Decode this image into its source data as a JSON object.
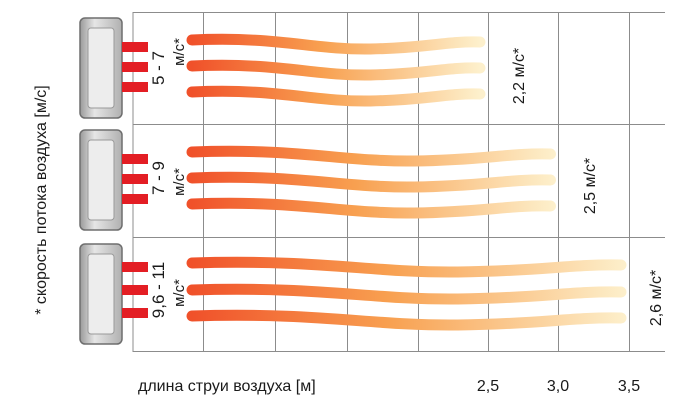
{
  "y_axis_label": "* скорость потока воздуха [м/с]",
  "x_axis_label": "длина струи воздуха [м]",
  "x_ticks": [
    "2,5",
    "3,0",
    "3,5"
  ],
  "rows": [
    {
      "speed_range": "5 - 7",
      "speed_unit": "м/с*",
      "jet_length_m": 2.5,
      "end_speed": "2,2 м/с*"
    },
    {
      "speed_range": "7 - 9",
      "speed_unit": "м/с*",
      "jet_length_m": 3.0,
      "end_speed": "2,5 м/с*"
    },
    {
      "speed_range": "9,6 - 11",
      "speed_unit": "м/с*",
      "jet_length_m": 3.5,
      "end_speed": "2,6 м/с*"
    }
  ],
  "colors": {
    "jet_start": "#f0512a",
    "jet_mid": "#f8a050",
    "jet_end": "#fdf0cc",
    "nozzle": "#e31e24",
    "grid": "#8c8c8c",
    "unit_body": "#c8c8c8"
  }
}
